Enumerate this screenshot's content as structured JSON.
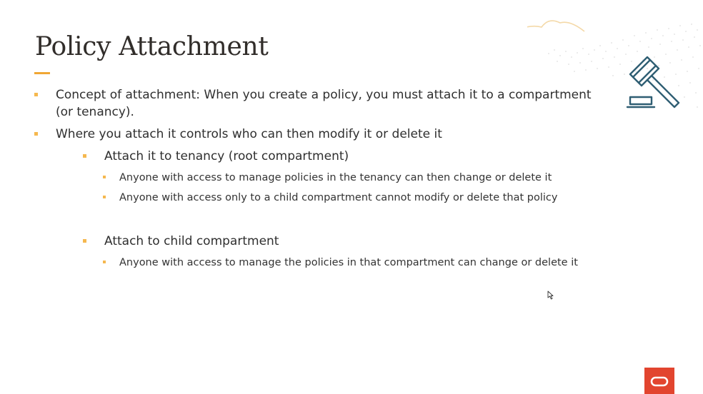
{
  "slide": {
    "title": "Policy Attachment",
    "bullets": [
      {
        "text_line1": "Concept of attachment: When you create a policy, you must attach it to a compartment",
        "text_line2": "(or tenancy)."
      },
      {
        "text": "Where you attach it controls who can then modify it or delete it"
      }
    ],
    "sub_tenancy": {
      "heading": "Attach it to tenancy (root compartment)",
      "items": [
        "Anyone with access to manage policies in the tenancy can then change or delete it",
        "Anyone with access only to a child compartment cannot modify or delete that policy"
      ]
    },
    "sub_child": {
      "heading": "Attach to child compartment",
      "items": [
        "Anyone with access to manage the policies in that compartment can change or delete it"
      ]
    }
  },
  "colors": {
    "accent": "#f0a735",
    "bullet": "#f5b84f",
    "icon": "#2f5e73",
    "brand_red": "#e2452f"
  },
  "icons": {
    "gavel": "gavel-icon",
    "logo": "oracle-logo-icon",
    "cursor": "mouse-cursor-icon"
  }
}
